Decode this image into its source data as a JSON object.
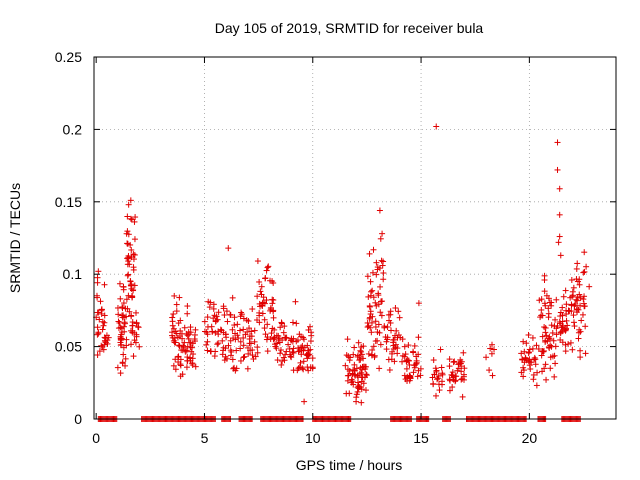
{
  "chart_data": {
    "type": "scatter",
    "title": "Day 105 of 2019, SRMTID for receiver bula",
    "xlabel": "GPS time / hours",
    "ylabel": "SRMTID / TECUs",
    "xlim": [
      -0.1,
      24
    ],
    "ylim": [
      0,
      0.25
    ],
    "xticks": [
      0,
      5,
      10,
      15,
      20
    ],
    "yticks": [
      0,
      0.05,
      0.1,
      0.15,
      0.2,
      0.25
    ],
    "xtick_labels": [
      "0",
      "5",
      "10",
      "15",
      "20"
    ],
    "ytick_labels": [
      "0",
      "0.05",
      "0.1",
      "0.15",
      "0.2",
      "0.25"
    ],
    "grid": true,
    "marker": "+",
    "color": "#e00000",
    "clusters": [
      {
        "x": [
          0.0,
          0.4
        ],
        "y": [
          0.03,
          0.1
        ],
        "n": 30
      },
      {
        "x": [
          0.4,
          0.6
        ],
        "y": [
          0.045,
          0.07
        ],
        "n": 8
      },
      {
        "x": [
          1.0,
          1.4
        ],
        "y": [
          0.03,
          0.1
        ],
        "n": 45
      },
      {
        "x": [
          1.4,
          1.8
        ],
        "y": [
          0.06,
          0.15
        ],
        "n": 45
      },
      {
        "x": [
          1.6,
          2.0
        ],
        "y": [
          0.04,
          0.08
        ],
        "n": 20
      },
      {
        "x": [
          3.5,
          4.0
        ],
        "y": [
          0.02,
          0.09
        ],
        "n": 40
      },
      {
        "x": [
          4.0,
          4.6
        ],
        "y": [
          0.025,
          0.08
        ],
        "n": 40
      },
      {
        "x": [
          5.0,
          5.8
        ],
        "y": [
          0.04,
          0.09
        ],
        "n": 35
      },
      {
        "x": [
          5.8,
          6.6
        ],
        "y": [
          0.03,
          0.09
        ],
        "n": 40
      },
      {
        "x": [
          6.6,
          7.4
        ],
        "y": [
          0.03,
          0.08
        ],
        "n": 35
      },
      {
        "x": [
          7.4,
          8.2
        ],
        "y": [
          0.04,
          0.12
        ],
        "n": 50
      },
      {
        "x": [
          8.2,
          9.2
        ],
        "y": [
          0.03,
          0.07
        ],
        "n": 45
      },
      {
        "x": [
          9.2,
          10.0
        ],
        "y": [
          0.02,
          0.07
        ],
        "n": 45
      },
      {
        "x": [
          11.5,
          12.5
        ],
        "y": [
          0.01,
          0.06
        ],
        "n": 70
      },
      {
        "x": [
          12.5,
          13.3
        ],
        "y": [
          0.03,
          0.13
        ],
        "n": 60
      },
      {
        "x": [
          13.3,
          14.2
        ],
        "y": [
          0.03,
          0.08
        ],
        "n": 40
      },
      {
        "x": [
          14.2,
          15.0
        ],
        "y": [
          0.02,
          0.06
        ],
        "n": 40
      },
      {
        "x": [
          15.5,
          16.0
        ],
        "y": [
          0.01,
          0.05
        ],
        "n": 20
      },
      {
        "x": [
          16.3,
          17.0
        ],
        "y": [
          0.01,
          0.055
        ],
        "n": 35
      },
      {
        "x": [
          18.0,
          18.4
        ],
        "y": [
          0.03,
          0.06
        ],
        "n": 6
      },
      {
        "x": [
          19.6,
          20.4
        ],
        "y": [
          0.02,
          0.06
        ],
        "n": 35
      },
      {
        "x": [
          20.4,
          21.2
        ],
        "y": [
          0.02,
          0.1
        ],
        "n": 55
      },
      {
        "x": [
          21.2,
          22.0
        ],
        "y": [
          0.04,
          0.1
        ],
        "n": 45
      },
      {
        "x": [
          22.0,
          22.8
        ],
        "y": [
          0.04,
          0.12
        ],
        "n": 45
      }
    ],
    "points": [
      {
        "x": 15.7,
        "y": 0.202
      },
      {
        "x": 21.3,
        "y": 0.191
      },
      {
        "x": 21.3,
        "y": 0.172
      },
      {
        "x": 21.4,
        "y": 0.159
      },
      {
        "x": 21.4,
        "y": 0.141
      },
      {
        "x": 13.1,
        "y": 0.144
      },
      {
        "x": 21.35,
        "y": 0.122
      },
      {
        "x": 21.4,
        "y": 0.126
      },
      {
        "x": 21.45,
        "y": 0.113
      },
      {
        "x": 6.1,
        "y": 0.118
      },
      {
        "x": 13.2,
        "y": 0.128
      },
      {
        "x": 1.5,
        "y": 0.148
      },
      {
        "x": 1.6,
        "y": 0.151
      },
      {
        "x": 0.1,
        "y": 0.102
      },
      {
        "x": 9.6,
        "y": 0.012
      },
      {
        "x": 12.0,
        "y": 0.012
      },
      {
        "x": 18.3,
        "y": 0.03
      },
      {
        "x": 9.2,
        "y": 0.081
      },
      {
        "x": 14.9,
        "y": 0.08
      },
      {
        "x": 15.9,
        "y": 0.048
      }
    ],
    "zero_band": [
      [
        0.1,
        1.0
      ],
      [
        2.1,
        5.5
      ],
      [
        5.8,
        6.2
      ],
      [
        6.6,
        7.2
      ],
      [
        7.6,
        9.6
      ],
      [
        10.0,
        11.8
      ],
      [
        13.6,
        14.6
      ],
      [
        14.8,
        15.4
      ],
      [
        16.0,
        16.4
      ],
      [
        17.1,
        19.9
      ],
      [
        20.4,
        20.8
      ],
      [
        21.5,
        22.4
      ]
    ]
  }
}
